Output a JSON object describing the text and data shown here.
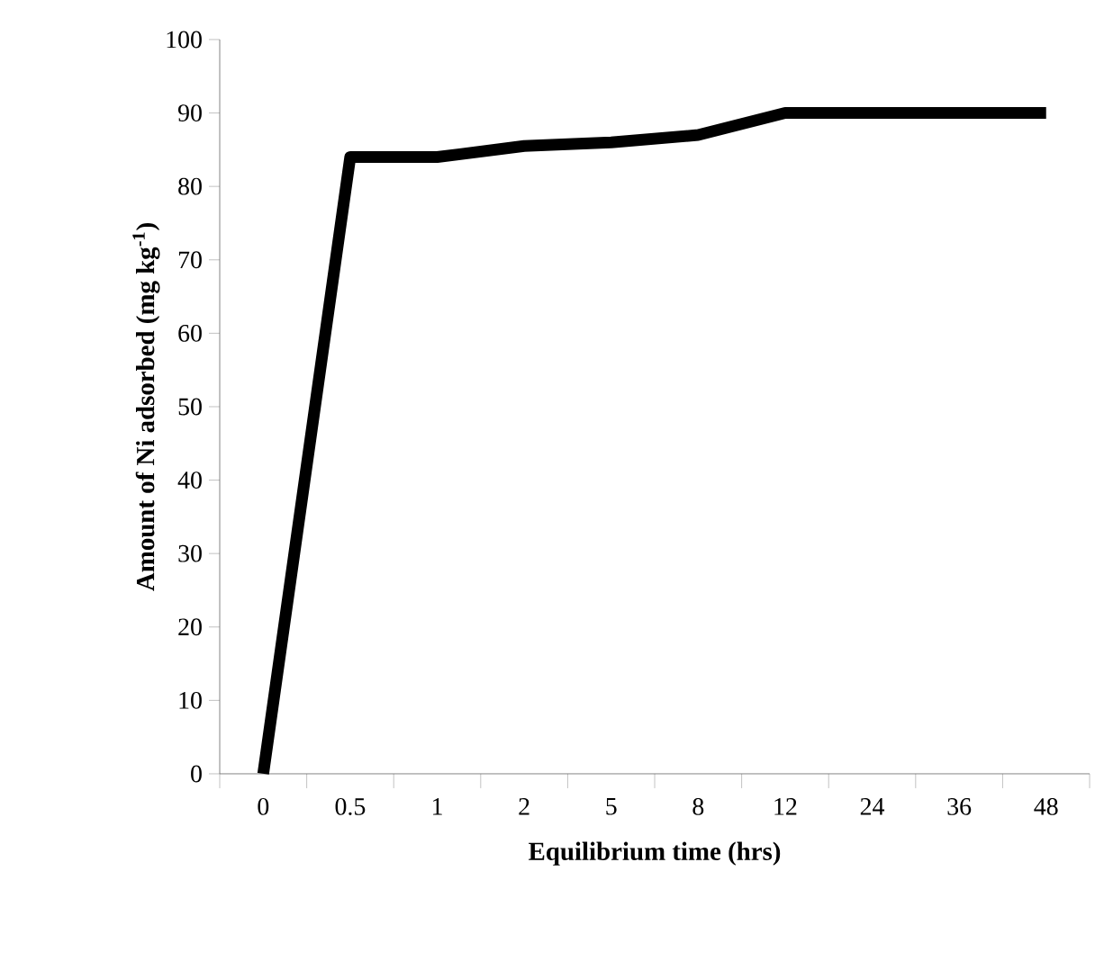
{
  "chart_data": {
    "type": "line",
    "xlabel": "Equilibrium time (hrs)",
    "ylabel": "Amount of Ni adsorbed (mg kg$^{-1}$)",
    "categories": [
      "0",
      "0.5",
      "1",
      "2",
      "5",
      "8",
      "12",
      "24",
      "36",
      "48"
    ],
    "values": [
      0,
      84,
      84,
      85.5,
      86,
      87,
      90,
      90,
      90,
      90
    ],
    "color": "#000000",
    "line_style": "solid",
    "ylim": [
      0,
      100
    ],
    "yticks": [
      0,
      10,
      20,
      30,
      40,
      50,
      60,
      70,
      80,
      90,
      100
    ]
  }
}
